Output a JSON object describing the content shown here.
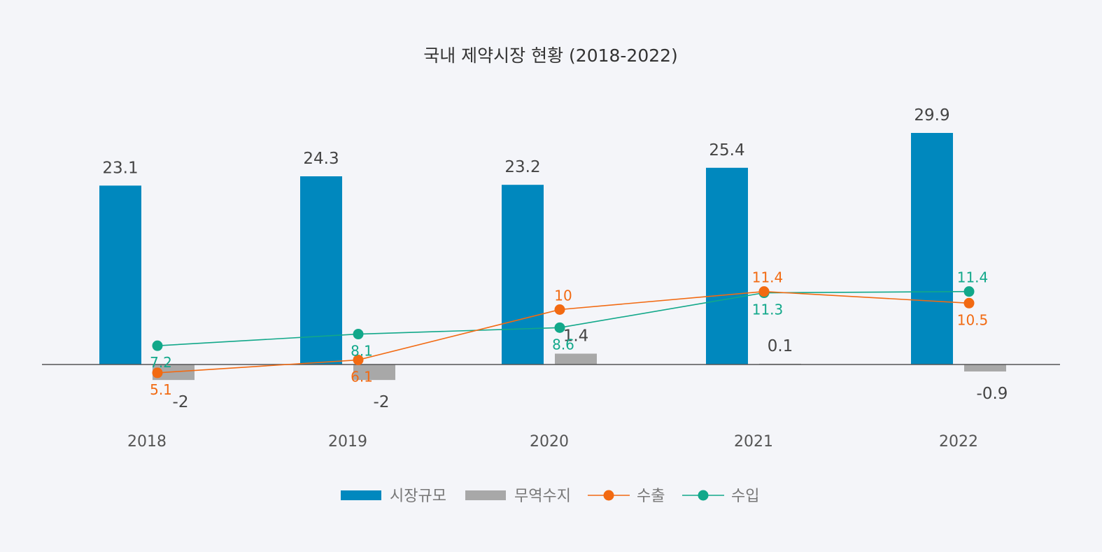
{
  "chart_data": {
    "type": "bar",
    "title": "국내 제약시장 현황 (2018-2022)",
    "categories": [
      "2018",
      "2019",
      "2020",
      "2021",
      "2022"
    ],
    "series": [
      {
        "name": "시장규모",
        "type": "bar",
        "color": "#0088be",
        "values": [
          23.1,
          24.3,
          23.2,
          25.4,
          29.9
        ],
        "labels": [
          "23.1",
          "24.3",
          "23.2",
          "25.4",
          "29.9"
        ]
      },
      {
        "name": "무역수지",
        "type": "bar",
        "color": "#a8a8a8",
        "values": [
          -2,
          -2,
          1.4,
          0.1,
          -0.9
        ],
        "labels": [
          "-2",
          "-2",
          "1.4",
          "0.1",
          "-0.9"
        ]
      },
      {
        "name": "수출",
        "type": "line",
        "color": "#f26a12",
        "values": [
          5.1,
          6.1,
          10,
          11.4,
          10.5
        ],
        "labels": [
          "5.1",
          "6.1",
          "10",
          "11.4",
          "10.5"
        ]
      },
      {
        "name": "수입",
        "type": "line",
        "color": "#12a88a",
        "values": [
          7.2,
          8.1,
          8.6,
          11.3,
          11.4
        ],
        "labels": [
          "7.2",
          "8.1",
          "8.6",
          "11.3",
          "11.4"
        ]
      }
    ],
    "xlabel": "",
    "ylabel": "",
    "axis_line_color": "#555555",
    "grid": false,
    "legend_position": "bottom-center"
  }
}
